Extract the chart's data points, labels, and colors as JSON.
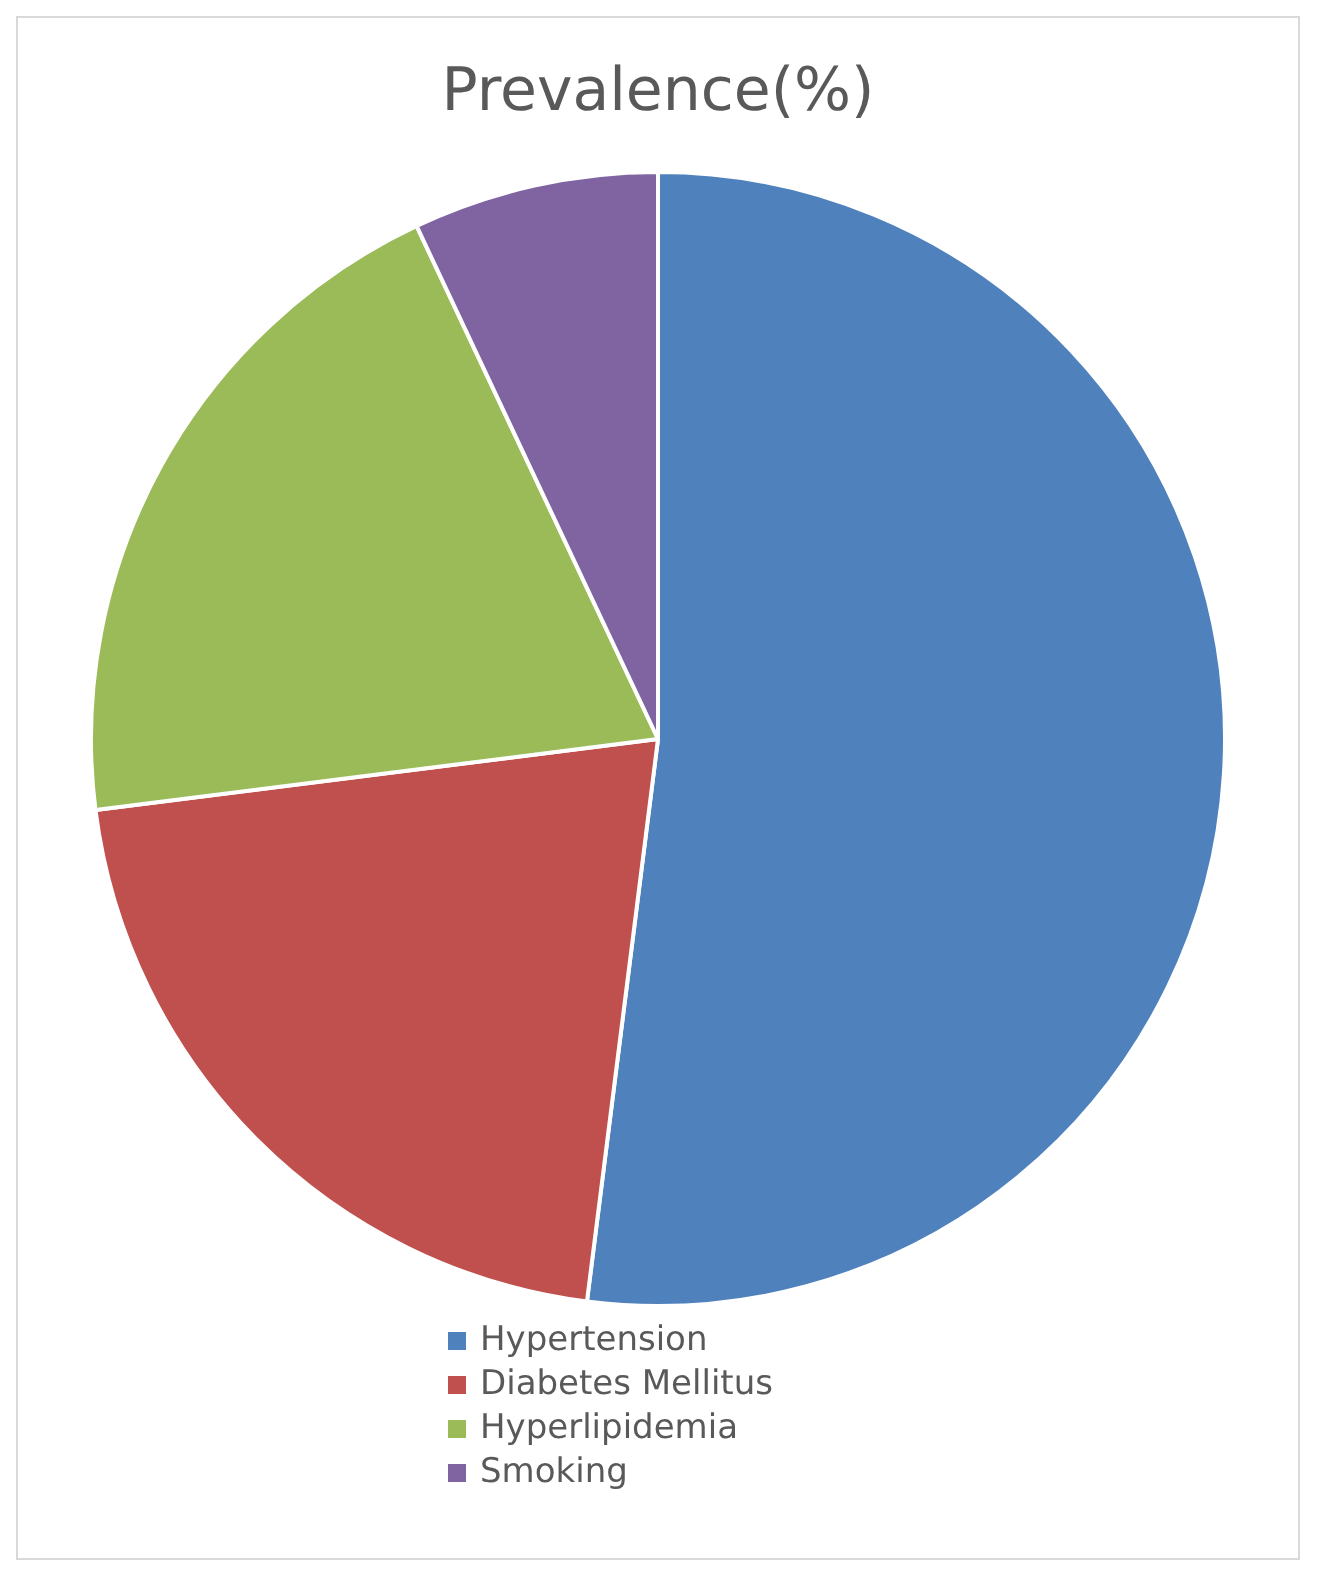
{
  "chart_data": {
    "type": "pie",
    "title": "Prevalence(%)",
    "categories": [
      "Hypertension",
      "Diabetes Mellitus",
      "Hyperlipidemia",
      "Smoking"
    ],
    "values": [
      52,
      21,
      20,
      7
    ],
    "colors": [
      "#4f81bd",
      "#c0504d",
      "#9bbb59",
      "#8064a2"
    ],
    "legend": "bottom"
  }
}
